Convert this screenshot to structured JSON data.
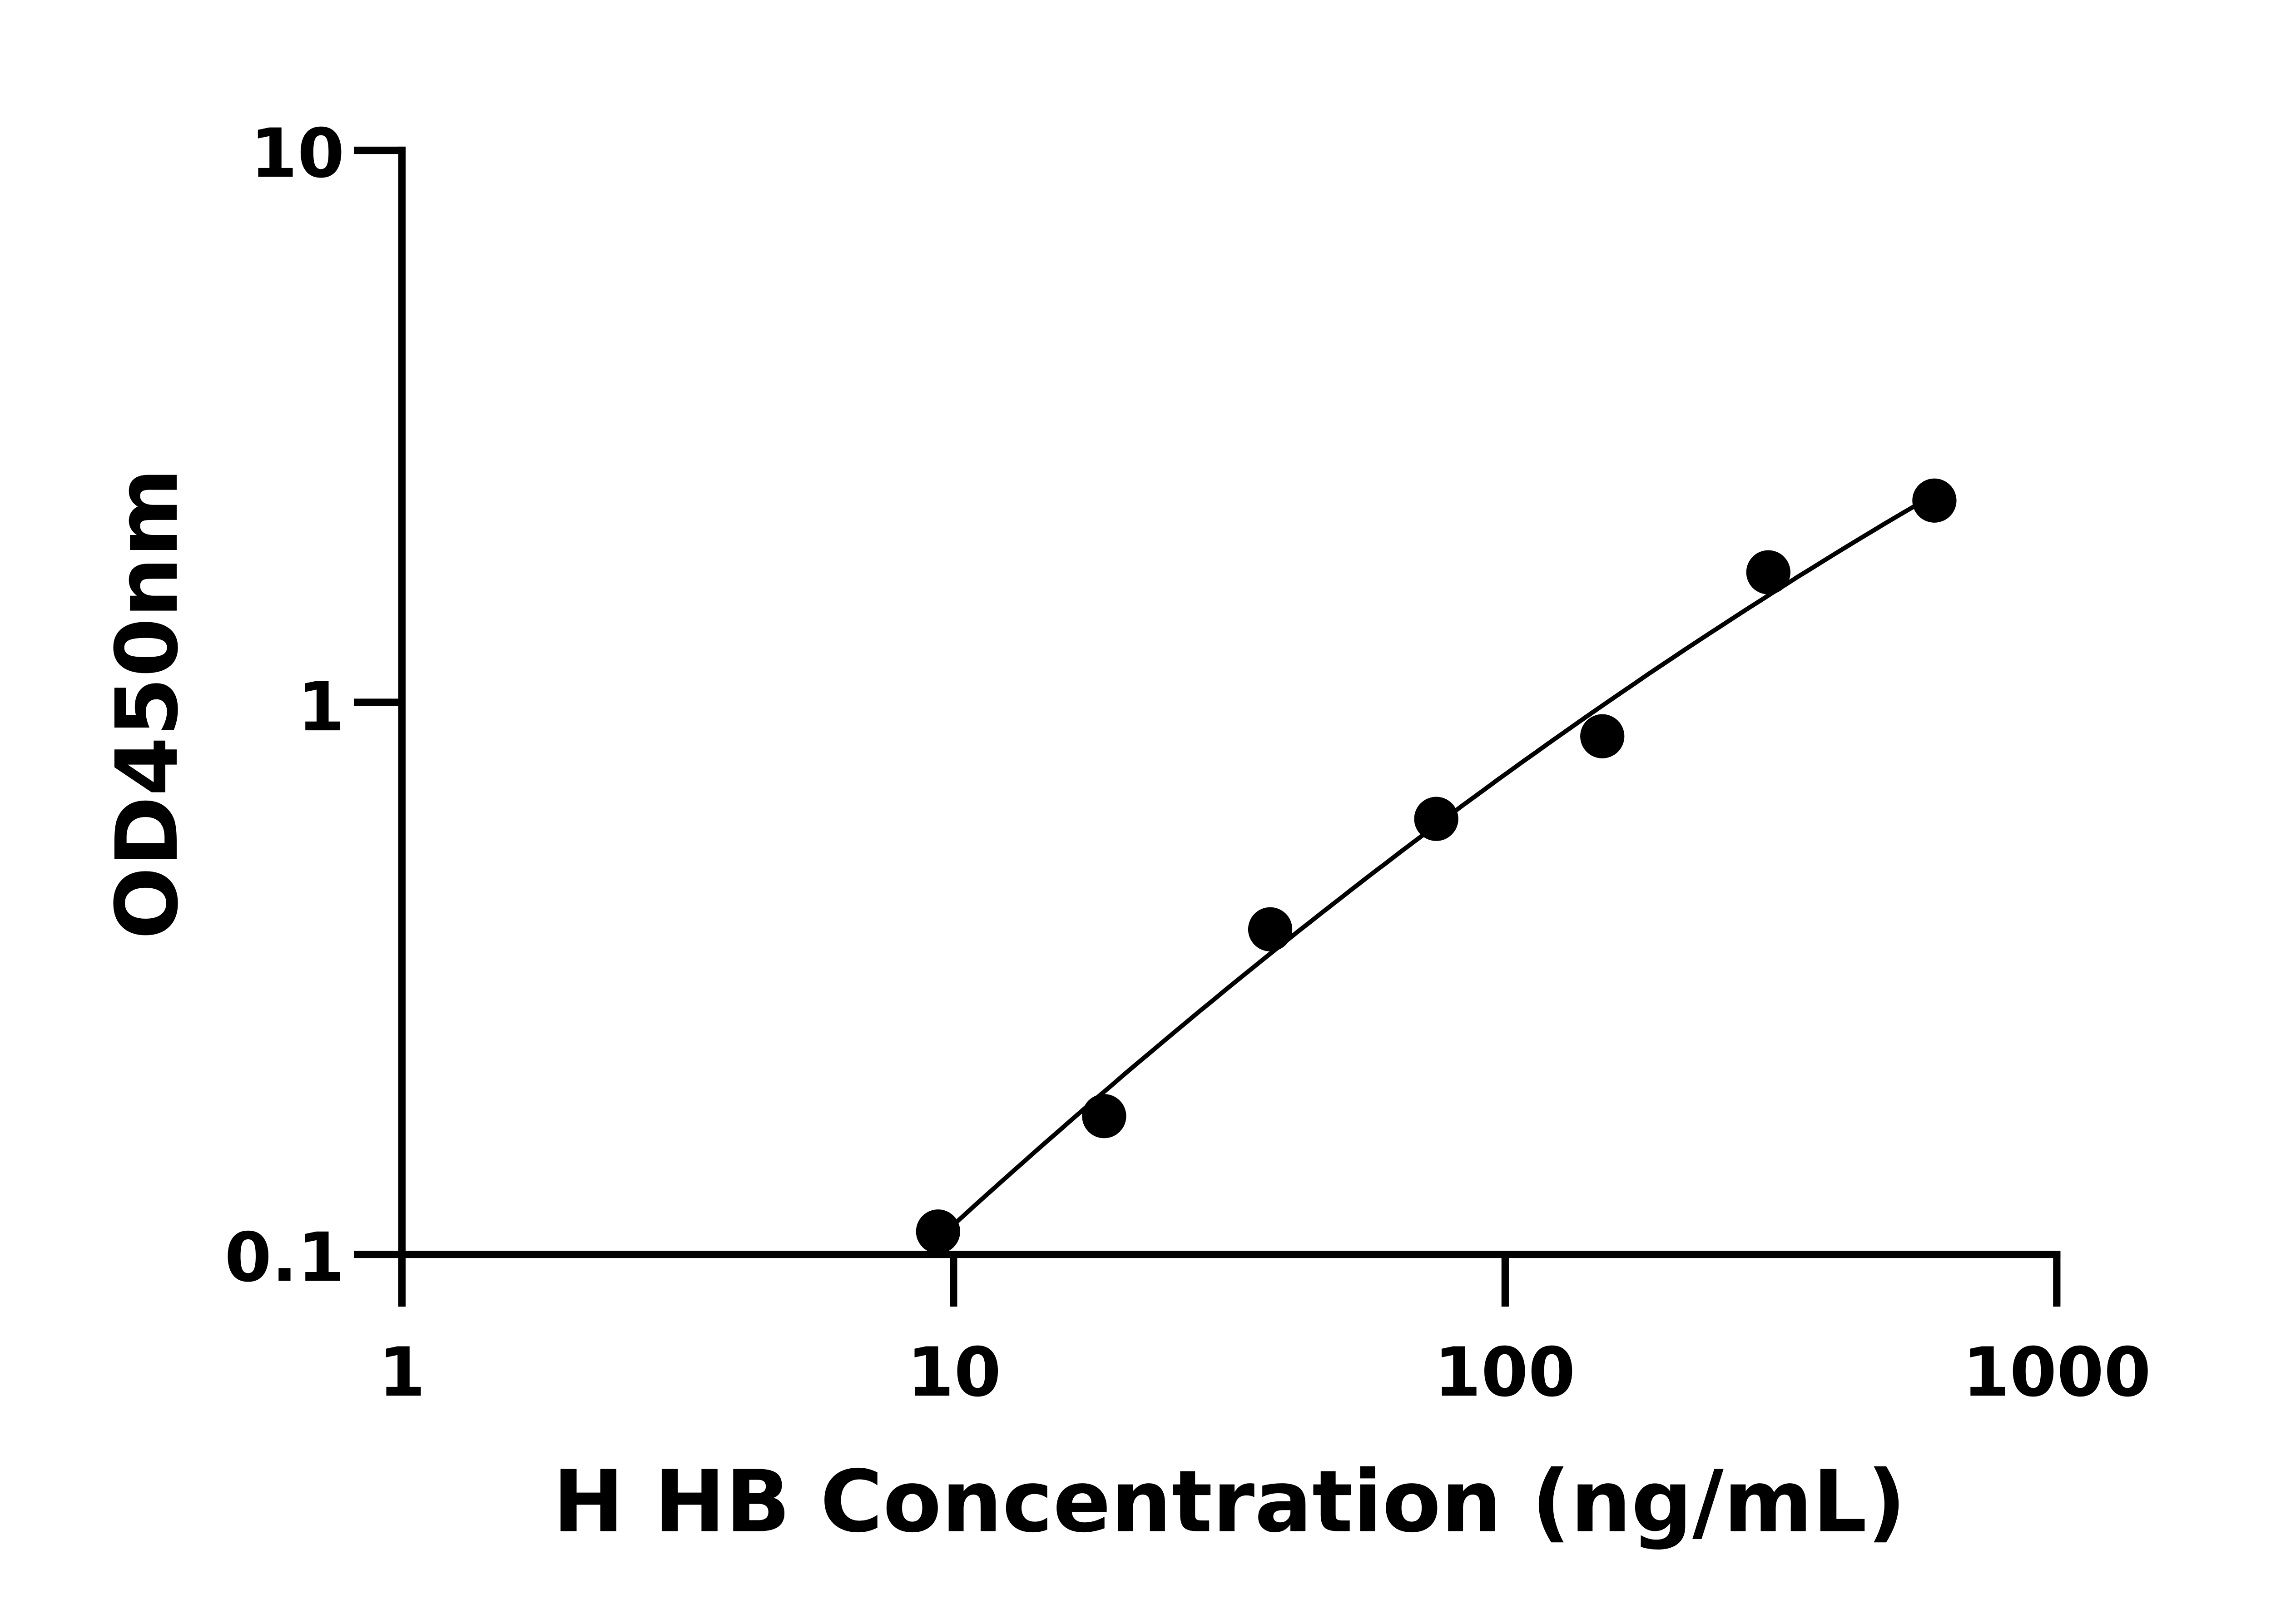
{
  "chart_data": {
    "type": "scatter",
    "title": "",
    "xlabel": "H HB Concentration (ng/mL)",
    "ylabel": "OD450nm",
    "x_scale": "log",
    "y_scale": "log",
    "xlim": [
      1,
      1000
    ],
    "ylim": [
      0.1,
      10
    ],
    "x_ticks": [
      "1",
      "10",
      "100",
      "1000"
    ],
    "y_ticks": [
      "0.1",
      "1",
      "10"
    ],
    "grid": false,
    "legend": "none",
    "fit_curve": true,
    "series": [
      {
        "x": [
          9.375,
          18.75,
          37.5,
          75,
          150,
          300,
          600
        ],
        "y": [
          0.11,
          0.178,
          0.388,
          0.615,
          0.868,
          1.72,
          2.32
        ]
      }
    ],
    "colors": {
      "points": "#000000",
      "line": "#000000",
      "axes": "#000000"
    }
  }
}
